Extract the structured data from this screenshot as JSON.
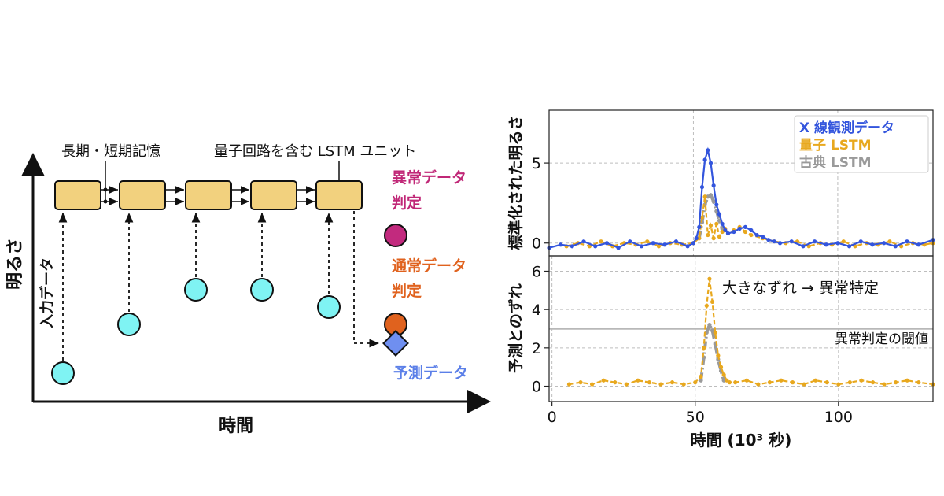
{
  "diagram": {
    "axis_y_label": "明るさ",
    "axis_x_label": "時間",
    "input_label": "入力データ",
    "memory_label": "長期・短期記憶",
    "unit_label": "量子回路を含む LSTM ユニット",
    "anomaly_label_line1": "異常データ",
    "anomaly_label_line2": "判定",
    "normal_label_line1": "通常データ",
    "normal_label_line2": "判定",
    "prediction_label": "予測データ",
    "colors": {
      "cell": "#f2d17e",
      "input": "#7ff3f3",
      "anomaly": "#c22a7e",
      "normal": "#e0621e",
      "prediction": "#6f8ff0",
      "anomaly_text": "#c02777",
      "normal_text": "#e0621e",
      "prediction_text": "#5b7fe8"
    }
  },
  "chart_data": [
    {
      "type": "line",
      "ylabel": "標準化された明るさ",
      "xlim": [
        0,
        133
      ],
      "ylim": [
        -0.8,
        8.3
      ],
      "yticks": [
        0,
        5
      ],
      "grid": true,
      "legend": "top-right",
      "series": [
        {
          "name": "X 線観測データ",
          "color": "#3355dd",
          "x": [
            0,
            4,
            8,
            12,
            16,
            20,
            24,
            28,
            32,
            36,
            40,
            44,
            48,
            50,
            51,
            52,
            53,
            54,
            55,
            56,
            57,
            58,
            59,
            60,
            61,
            62,
            64,
            66,
            68,
            70,
            72,
            74,
            76,
            78,
            80,
            84,
            88,
            92,
            96,
            100,
            104,
            108,
            112,
            116,
            120,
            124,
            128,
            133
          ],
          "y": [
            -0.3,
            -0.1,
            -0.2,
            0.1,
            -0.2,
            0.0,
            -0.3,
            0.1,
            -0.2,
            0.0,
            -0.1,
            0.1,
            -0.2,
            0.0,
            0.3,
            1.0,
            3.5,
            5.2,
            5.8,
            5.0,
            3.6,
            2.4,
            1.8,
            1.2,
            0.8,
            0.6,
            0.7,
            0.9,
            1.0,
            0.8,
            0.5,
            0.4,
            0.2,
            0.1,
            0.0,
            0.1,
            -0.2,
            0.1,
            -0.1,
            0.0,
            -0.2,
            0.1,
            -0.1,
            0.0,
            -0.2,
            0.1,
            -0.1,
            0.2
          ]
        },
        {
          "name": "量子 LSTM",
          "color": "#e8a81e",
          "x": [
            6,
            10,
            14,
            18,
            22,
            26,
            30,
            34,
            38,
            42,
            46,
            50,
            52,
            53,
            54,
            55,
            56,
            57,
            58,
            59,
            60,
            61,
            62,
            64,
            66,
            68,
            70,
            74,
            78,
            82,
            86,
            90,
            94,
            98,
            102,
            106,
            110,
            114,
            118,
            122,
            126,
            130,
            133
          ],
          "y": [
            -0.2,
            0.0,
            -0.2,
            0.1,
            -0.2,
            0.0,
            -0.1,
            0.1,
            -0.2,
            0.0,
            -0.1,
            0.0,
            0.3,
            1.6,
            2.9,
            0.5,
            1.1,
            0.3,
            1.2,
            0.4,
            0.7,
            0.9,
            0.6,
            0.8,
            1.0,
            0.7,
            0.5,
            0.3,
            0.1,
            0.0,
            0.1,
            -0.2,
            0.0,
            -0.1,
            0.1,
            -0.2,
            0.0,
            -0.1,
            0.1,
            -0.2,
            0.0,
            -0.1,
            0.0
          ]
        },
        {
          "name": "古典 LSTM",
          "color": "#9a9a9a",
          "x": [
            52,
            53,
            54,
            55,
            56,
            57,
            58,
            59,
            60
          ],
          "y": [
            0.3,
            1.3,
            2.4,
            2.9,
            3.0,
            2.6,
            2.0,
            1.4,
            0.9
          ]
        }
      ]
    },
    {
      "type": "line",
      "xlabel": "時間 (10³ 秒)",
      "ylabel": "予測とのずれ",
      "xlim": [
        -1,
        133
      ],
      "ylim": [
        -0.8,
        6.8
      ],
      "xticks": [
        0,
        50,
        100
      ],
      "yticks": [
        0,
        2,
        4,
        6
      ],
      "grid": true,
      "threshold": {
        "value": 3.0,
        "label": "異常判定の閾値"
      },
      "annotation": "大きなずれ → 異常特定",
      "series": [
        {
          "name": "量子 LSTM",
          "color": "#e8a81e",
          "x": [
            6,
            10,
            14,
            18,
            22,
            26,
            30,
            34,
            38,
            42,
            46,
            50,
            52,
            53,
            54,
            55,
            56,
            57,
            58,
            59,
            60,
            61,
            62,
            64,
            68,
            72,
            76,
            80,
            84,
            88,
            92,
            96,
            100,
            104,
            108,
            112,
            116,
            120,
            124,
            128,
            133
          ],
          "y": [
            0.1,
            0.2,
            0.1,
            0.3,
            0.2,
            0.1,
            0.3,
            0.2,
            0.1,
            0.2,
            0.1,
            0.2,
            0.5,
            2.0,
            4.2,
            5.6,
            4.4,
            2.8,
            1.6,
            1.0,
            0.6,
            0.3,
            0.2,
            0.2,
            0.3,
            0.1,
            0.2,
            0.3,
            0.2,
            0.1,
            0.3,
            0.2,
            0.1,
            0.2,
            0.3,
            0.2,
            0.1,
            0.2,
            0.3,
            0.2,
            0.1
          ]
        },
        {
          "name": "古典 LSTM",
          "color": "#9a9a9a",
          "x": [
            52,
            53,
            54,
            55,
            56,
            57,
            58,
            59,
            60
          ],
          "y": [
            0.3,
            1.5,
            2.8,
            3.2,
            2.9,
            2.2,
            1.4,
            0.8,
            0.3
          ]
        }
      ]
    }
  ]
}
